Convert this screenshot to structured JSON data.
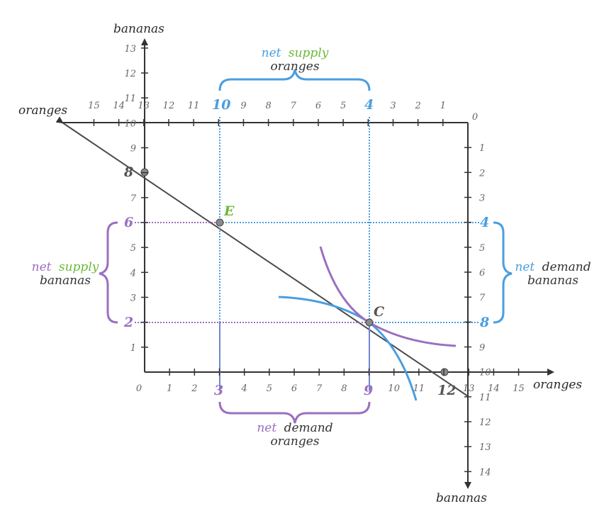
{
  "labels": {
    "bananas_top": "bananas",
    "oranges_left": "oranges",
    "oranges_right": "oranges",
    "bananas_bottom": "bananas"
  },
  "ticks": {
    "bottom_x": [
      "0",
      "1",
      "2",
      "3",
      "4",
      "5",
      "6",
      "7",
      "8",
      "9",
      "10",
      "11",
      "12",
      "13",
      "14",
      "15"
    ],
    "left_y": [
      "1",
      "2",
      "3",
      "4",
      "5",
      "6",
      "7",
      "8",
      "9",
      "10",
      "11",
      "12",
      "13"
    ],
    "top_x": [
      "15",
      "14",
      "13",
      "12",
      "11",
      "10",
      "9",
      "8",
      "7",
      "6",
      "5",
      "4",
      "3",
      "2",
      "1",
      "0"
    ],
    "right_y": [
      "1",
      "2",
      "3",
      "4",
      "5",
      "6",
      "7",
      "8",
      "9",
      "10",
      "11",
      "12",
      "13",
      "14"
    ]
  },
  "highlight_values": {
    "bottom_3": "3",
    "bottom_9": "9",
    "bottom_12": "12",
    "left_6": "6",
    "left_2": "2",
    "left_8": "8",
    "top_10": "10",
    "top_4": "4",
    "right_4": "4",
    "right_8": "8"
  },
  "points": {
    "E": "E",
    "C": "C"
  },
  "braces": {
    "top": {
      "word1": "net",
      "word2": "supply",
      "line2": "oranges"
    },
    "left": {
      "word1": "net",
      "word2": "supply",
      "line2": "bananas"
    },
    "right": {
      "word1": "net",
      "word2": "demand",
      "line2": "bananas"
    },
    "bottom": {
      "word1": "net",
      "word2": "demand",
      "line2": "oranges"
    }
  },
  "colors": {
    "blue": "#4a9ee0",
    "purple": "#9b6fc0",
    "green": "#6cb83a",
    "dark": "#333333",
    "budget_line": "#4a4a4a",
    "gray_point": "#8a8a8a"
  }
}
